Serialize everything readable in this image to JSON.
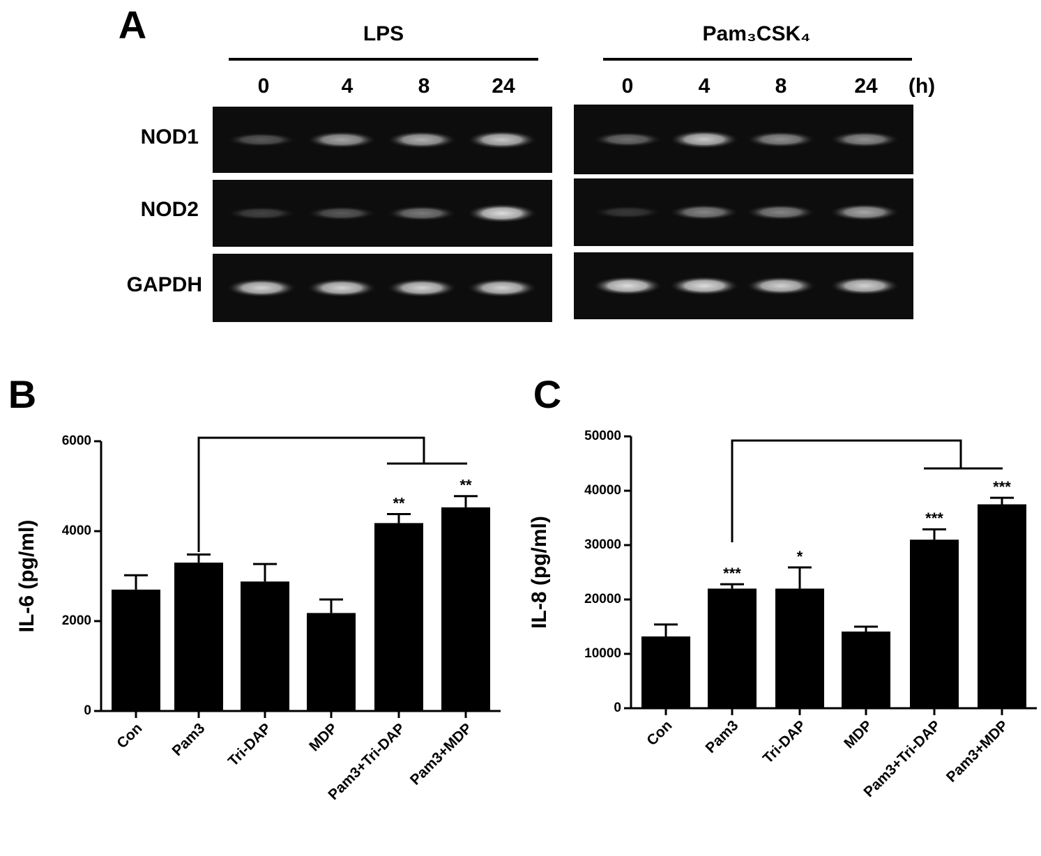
{
  "panel_a": {
    "label": "A",
    "groups": [
      {
        "name": "LPS",
        "time_points": [
          "0",
          "4",
          "8",
          "24"
        ]
      },
      {
        "name": "Pam₃CSK₄",
        "time_points": [
          "0",
          "4",
          "8",
          "24"
        ]
      }
    ],
    "time_unit": "(h)",
    "rows": [
      "NOD1",
      "NOD2",
      "GAPDH"
    ]
  },
  "chart_data": [
    {
      "type": "bar",
      "panel_label": "B",
      "ylabel": "IL-6 (pg/ml)",
      "categories": [
        "Con",
        "Pam3",
        "Tri-DAP",
        "MDP",
        "Pam3+Tri-DAP",
        "Pam3+MDP"
      ],
      "values": [
        2700,
        3300,
        2880,
        2180,
        4180,
        4530
      ],
      "errors": [
        320,
        180,
        390,
        300,
        200,
        250
      ],
      "annotations": [
        null,
        null,
        null,
        null,
        "**",
        "**"
      ],
      "color": "#000000",
      "ylim": [
        0,
        6000
      ],
      "yticks": [
        0,
        2000,
        4000,
        6000
      ]
    },
    {
      "type": "bar",
      "panel_label": "C",
      "ylabel": "IL-8 (pg/ml)",
      "categories": [
        "Con",
        "Pam3",
        "Tri-DAP",
        "MDP",
        "Pam3+Tri-DAP",
        "Pam3+MDP"
      ],
      "values": [
        13200,
        22000,
        22000,
        14100,
        31000,
        37500
      ],
      "errors": [
        2200,
        800,
        3900,
        900,
        1900,
        1200
      ],
      "annotations": [
        null,
        "***",
        "*",
        null,
        "***",
        "***"
      ],
      "color": "#000000",
      "ylim": [
        0,
        50000
      ],
      "yticks": [
        0,
        10000,
        20000,
        30000,
        40000,
        50000
      ]
    }
  ]
}
